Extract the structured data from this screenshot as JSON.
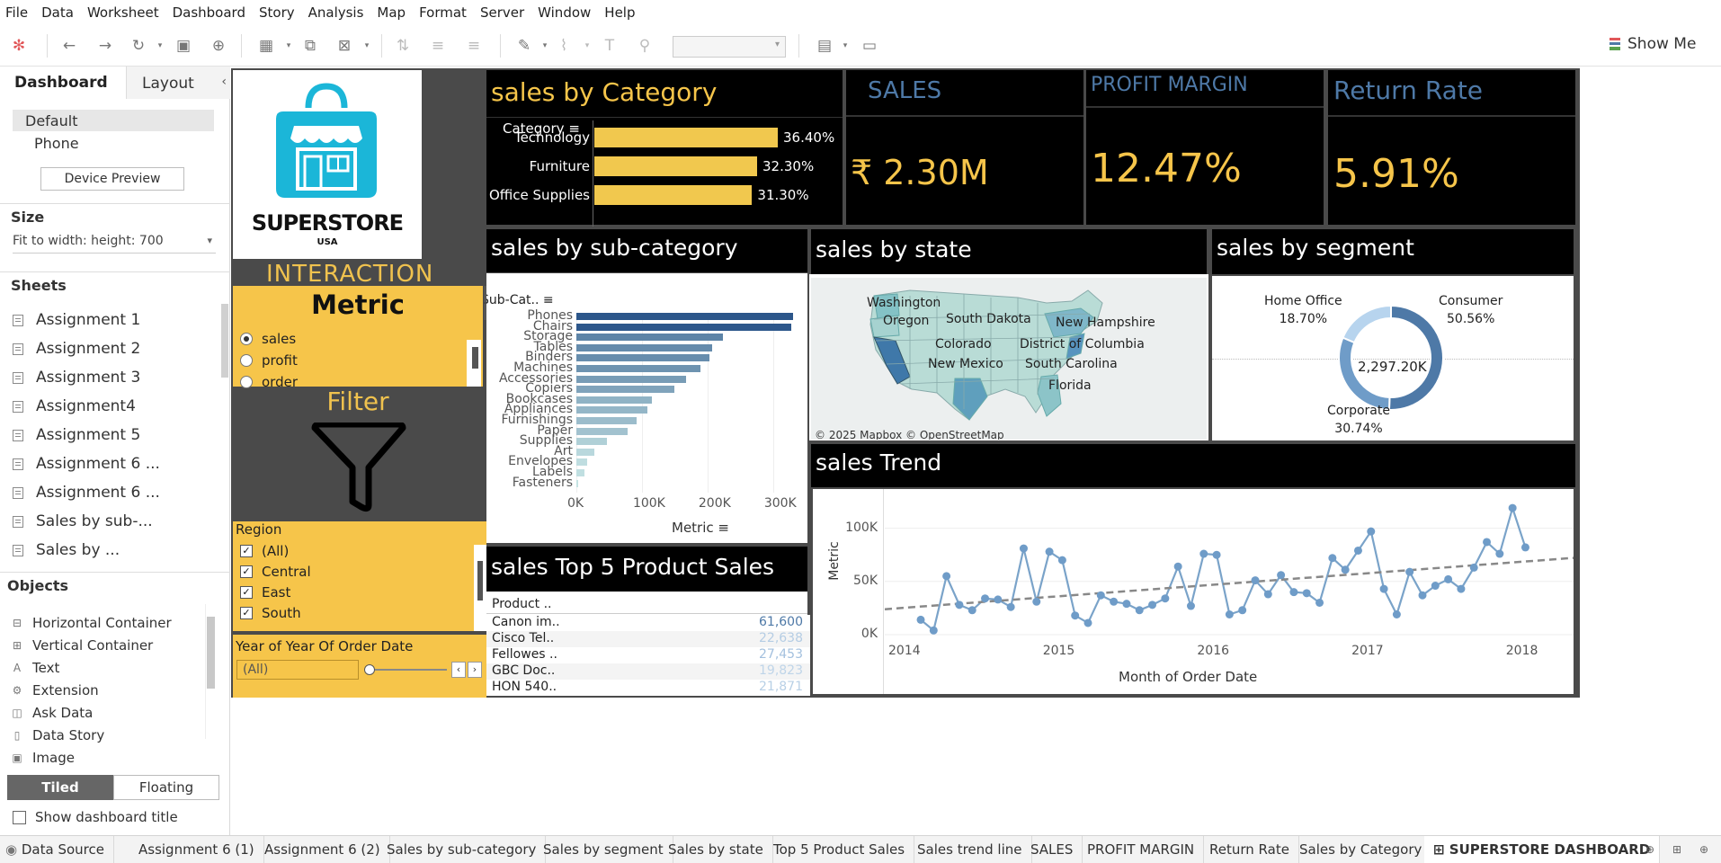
{
  "menu": [
    "File",
    "Data",
    "Worksheet",
    "Dashboard",
    "Story",
    "Analysis",
    "Map",
    "Format",
    "Server",
    "Window",
    "Help"
  ],
  "toolbar": {
    "show_me": "Show Me"
  },
  "left": {
    "tab_dashboard": "Dashboard",
    "tab_layout": "Layout",
    "devices": {
      "default": "Default",
      "phone": "Phone",
      "preview_button": "Device Preview"
    },
    "size_title": "Size",
    "size_value": "Fit to width: height: 700",
    "sheets_title": "Sheets",
    "sheets": [
      "Assignment 1",
      "Assignment 2",
      "Assignment 3",
      "Assignment4",
      "Assignment 5",
      "Assignment 6 ...",
      "Assignment 6 ...",
      "Sales by sub-...",
      "Sales by ..."
    ],
    "objects_title": "Objects",
    "objects": [
      {
        "label": "Horizontal Container",
        "icon": "horizontal-container-icon"
      },
      {
        "label": "Vertical Container",
        "icon": "vertical-container-icon"
      },
      {
        "label": "Text",
        "icon": "text-icon"
      },
      {
        "label": "Extension",
        "icon": "extension-icon"
      },
      {
        "label": "Ask Data",
        "icon": "ask-data-icon"
      },
      {
        "label": "Data Story",
        "icon": "data-story-icon"
      },
      {
        "label": "Image",
        "icon": "image-icon"
      }
    ],
    "tiled": "Tiled",
    "floating": "Floating",
    "show_title": "Show dashboard title"
  },
  "dashboard": {
    "logo": {
      "name": "SUPERSTORE",
      "sub": "USA"
    },
    "interaction_label": "INTERACTION",
    "metric": {
      "title": "Metric",
      "options": [
        "sales",
        "profit",
        "order"
      ],
      "selected": "sales"
    },
    "filter_label": "Filter",
    "region": {
      "title": "Region",
      "options": [
        "(All)",
        "Central",
        "East",
        "South"
      ]
    },
    "year": {
      "title": "Year of Year Of Order Date",
      "value": "(All)"
    },
    "category": {
      "title": "sales by Category",
      "header": "Category",
      "items": [
        {
          "name": "Technology",
          "pct": 36.4,
          "label": "36.40%"
        },
        {
          "name": "Furniture",
          "pct": 32.3,
          "label": "32.30%"
        },
        {
          "name": "Office Supplies",
          "pct": 31.3,
          "label": "31.30%"
        }
      ]
    },
    "kpis": {
      "sales": {
        "label": "SALES",
        "value": "₹ 2.30M"
      },
      "profit_margin": {
        "label": "PROFIT MARGIN",
        "value": "12.47%"
      },
      "return_rate": {
        "label": "Return Rate",
        "value": "5.91%"
      }
    },
    "subcategory": {
      "title": "sales by sub-category",
      "header": "Sub-Cat..",
      "axis_label": "Metric",
      "ticks": [
        "0K",
        "100K",
        "200K",
        "300K"
      ]
    },
    "state": {
      "title": "sales by state",
      "labels": [
        "Washington",
        "Oregon",
        "South Dakota",
        "New Hampshire",
        "Colorado",
        "District of Columbia",
        "New Mexico",
        "South Carolina",
        "Florida"
      ],
      "credit": "© 2025 Mapbox © OpenStreetMap"
    },
    "segment": {
      "title": "sales by segment",
      "center": "2,297.20K",
      "labels": [
        {
          "name": "Home Office",
          "pct": "18.70%"
        },
        {
          "name": "Consumer",
          "pct": "50.56%"
        },
        {
          "name": "Corporate",
          "pct": "30.74%"
        }
      ]
    },
    "trend": {
      "title": "sales Trend",
      "y_label": "Metric",
      "x_label": "Month of Order Date",
      "y_ticks": [
        "100K",
        "50K",
        "0K"
      ],
      "x_ticks": [
        "2014",
        "2015",
        "2016",
        "2017",
        "2018"
      ]
    },
    "top5": {
      "title": "sales Top 5 Product Sales",
      "header": "Product ..",
      "rows": [
        {
          "name": "Canon im..",
          "value": "61,600",
          "color": "#4e79a7"
        },
        {
          "name": "Cisco Tel..",
          "value": "22,638",
          "color": "#b5cde4"
        },
        {
          "name": "Fellowes ..",
          "value": "27,453",
          "color": "#a3c0de"
        },
        {
          "name": "GBC Doc..",
          "value": "19,823",
          "color": "#bfd5e9"
        },
        {
          "name": "HON 540..",
          "value": "21,871",
          "color": "#b8d0e6"
        }
      ]
    }
  },
  "chart_data": [
    {
      "type": "bar",
      "title": "sales by Category",
      "categories": [
        "Technology",
        "Furniture",
        "Office Supplies"
      ],
      "values": [
        36.4,
        32.3,
        31.3
      ],
      "orientation": "horizontal"
    },
    {
      "type": "bar",
      "title": "sales by sub-category",
      "orientation": "horizontal",
      "categories": [
        "Phones",
        "Chairs",
        "Storage",
        "Tables",
        "Binders",
        "Machines",
        "Accessories",
        "Copiers",
        "Bookcases",
        "Appliances",
        "Furnishings",
        "Paper",
        "Supplies",
        "Art",
        "Envelopes",
        "Labels",
        "Fasteners"
      ],
      "values": [
        330000,
        328000,
        224000,
        207000,
        203000,
        189000,
        167000,
        150000,
        115000,
        108000,
        92000,
        78000,
        47000,
        27000,
        16000,
        12000,
        3000
      ],
      "xlabel": "Metric",
      "xlim": [
        0,
        340000
      ]
    },
    {
      "type": "pie",
      "title": "sales by segment",
      "categories": [
        "Consumer",
        "Corporate",
        "Home Office"
      ],
      "values": [
        50.56,
        30.74,
        18.7
      ]
    },
    {
      "type": "line",
      "title": "sales Trend",
      "xlabel": "Month of Order Date",
      "ylabel": "Metric",
      "ylim": [
        0,
        120000
      ],
      "x": [
        "2014-01",
        "2014-02",
        "2014-03",
        "2014-04",
        "2014-05",
        "2014-06",
        "2014-07",
        "2014-08",
        "2014-09",
        "2014-10",
        "2014-11",
        "2014-12",
        "2015-01",
        "2015-02",
        "2015-03",
        "2015-04",
        "2015-05",
        "2015-06",
        "2015-07",
        "2015-08",
        "2015-09",
        "2015-10",
        "2015-11",
        "2015-12",
        "2016-01",
        "2016-02",
        "2016-03",
        "2016-04",
        "2016-05",
        "2016-06",
        "2016-07",
        "2016-08",
        "2016-09",
        "2016-10",
        "2016-11",
        "2016-12",
        "2017-01",
        "2017-02",
        "2017-03",
        "2017-04",
        "2017-05",
        "2017-06",
        "2017-07",
        "2017-08",
        "2017-09",
        "2017-10",
        "2017-11",
        "2017-12"
      ],
      "values": [
        14000,
        4000,
        55000,
        28000,
        23000,
        34000,
        33000,
        26000,
        81000,
        31000,
        78000,
        70000,
        18000,
        11000,
        37000,
        31000,
        29000,
        23000,
        28000,
        34000,
        64000,
        27000,
        76000,
        75000,
        19000,
        23000,
        51000,
        38000,
        56000,
        40000,
        39000,
        30000,
        72000,
        61000,
        79000,
        97000,
        43000,
        19000,
        59000,
        37000,
        46000,
        52000,
        43000,
        63000,
        87000,
        76000,
        119000,
        82000
      ],
      "trend_line": true
    }
  ]
}
